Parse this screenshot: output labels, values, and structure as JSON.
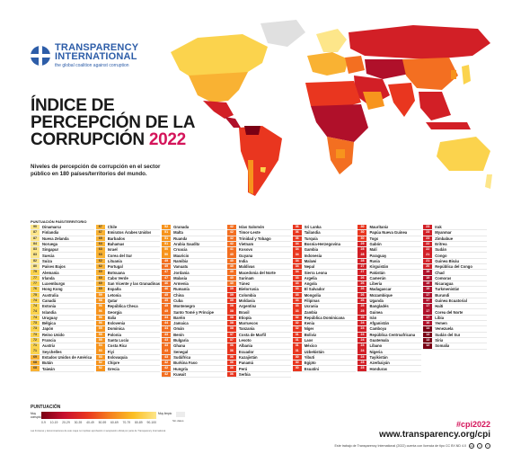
{
  "brand": {
    "name_line1": "TRANSPARENCY",
    "name_line2": "INTERNATIONAL",
    "tagline": "the global coalition against corruption"
  },
  "title": {
    "line1": "ÍNDICE DE",
    "line2": "PERCEPCIÓN DE LA",
    "line3": "CORRUPCIÓN",
    "year": "2022"
  },
  "subtitle": "Niveles de percepción de corrupción en el sector público en 180 países/territorios del mundo.",
  "table_header": "PUNTUACIÓN PAÍS/TERRITORIO",
  "colors": {
    "c90": "#fde68a",
    "c80": "#fbd34d",
    "c70": "#f9b233",
    "c60": "#f7941d",
    "c50": "#f36f21",
    "c40": "#e9361f",
    "c30": "#d21f26",
    "c20": "#b0102a",
    "c10": "#7a0014",
    "accent": "#d4145a",
    "brand": "#2d5da8"
  },
  "columns": [
    [
      {
        "s": "90",
        "n": "Dinamarca"
      },
      {
        "s": "87",
        "n": "Finlandia"
      },
      {
        "s": "87",
        "n": "Nueva Zelanda"
      },
      {
        "s": "84",
        "n": "Noruega"
      },
      {
        "s": "83",
        "n": "Singapur"
      },
      {
        "s": "83",
        "n": "Suecia"
      },
      {
        "s": "82",
        "n": "Suiza"
      },
      {
        "s": "80",
        "n": "Países Bajos"
      },
      {
        "s": "79",
        "n": "Alemania"
      },
      {
        "s": "77",
        "n": "Irlanda"
      },
      {
        "s": "77",
        "n": "Luxemburgo"
      },
      {
        "s": "76",
        "n": "Hong Kong"
      },
      {
        "s": "75",
        "n": "Australia"
      },
      {
        "s": "74",
        "n": "Canadá"
      },
      {
        "s": "74",
        "n": "Estonia"
      },
      {
        "s": "74",
        "n": "Islandia"
      },
      {
        "s": "74",
        "n": "Uruguay"
      },
      {
        "s": "73",
        "n": "Bélgica"
      },
      {
        "s": "73",
        "n": "Japón"
      },
      {
        "s": "73",
        "n": "Reino Unido"
      },
      {
        "s": "72",
        "n": "Francia"
      },
      {
        "s": "71",
        "n": "Austria"
      },
      {
        "s": "71",
        "n": "Seychelles"
      },
      {
        "s": "69",
        "n": "Estados Unidos de América"
      },
      {
        "s": "68",
        "n": "Bután"
      },
      {
        "s": "68",
        "n": "Taiwán"
      }
    ],
    [
      {
        "s": "67",
        "n": "Chile"
      },
      {
        "s": "67",
        "n": "Emiratos Árabes Unidos"
      },
      {
        "s": "65",
        "n": "Barbados"
      },
      {
        "s": "64",
        "n": "Bahamas"
      },
      {
        "s": "63",
        "n": "Israel"
      },
      {
        "s": "63",
        "n": "Corea del Sur"
      },
      {
        "s": "62",
        "n": "Lituania"
      },
      {
        "s": "62",
        "n": "Portugal"
      },
      {
        "s": "60",
        "n": "Botsuana"
      },
      {
        "s": "60",
        "n": "Cabo Verde"
      },
      {
        "s": "60",
        "n": "San Vicente y las Granadinas"
      },
      {
        "s": "60",
        "n": "España"
      },
      {
        "s": "59",
        "n": "Letonia"
      },
      {
        "s": "58",
        "n": "Qatar"
      },
      {
        "s": "56",
        "n": "República Checa"
      },
      {
        "s": "56",
        "n": "Georgia"
      },
      {
        "s": "56",
        "n": "Italia"
      },
      {
        "s": "56",
        "n": "Eslovenia"
      },
      {
        "s": "55",
        "n": "Dominica"
      },
      {
        "s": "55",
        "n": "Polonia"
      },
      {
        "s": "55",
        "n": "Santa Lucía"
      },
      {
        "s": "54",
        "n": "Costa Rica"
      },
      {
        "s": "53",
        "n": "Fiyi"
      },
      {
        "s": "53",
        "n": "Eslovaquia"
      },
      {
        "s": "52",
        "n": "Chipre"
      },
      {
        "s": "52",
        "n": "Grecia"
      }
    ],
    [
      {
        "s": "52",
        "n": "Granada"
      },
      {
        "s": "51",
        "n": "Malta"
      },
      {
        "s": "51",
        "n": "Ruanda"
      },
      {
        "s": "51",
        "n": "Arabia Saudita"
      },
      {
        "s": "50",
        "n": "Croacia"
      },
      {
        "s": "50",
        "n": "Mauricio"
      },
      {
        "s": "49",
        "n": "Namibia"
      },
      {
        "s": "49",
        "n": "Vanuatu"
      },
      {
        "s": "47",
        "n": "Jordania"
      },
      {
        "s": "47",
        "n": "Malasia"
      },
      {
        "s": "46",
        "n": "Armenia"
      },
      {
        "s": "46",
        "n": "Rumanía"
      },
      {
        "s": "45",
        "n": "China"
      },
      {
        "s": "45",
        "n": "Cuba"
      },
      {
        "s": "45",
        "n": "Montenegro"
      },
      {
        "s": "45",
        "n": "Santo Tomé y Príncipe"
      },
      {
        "s": "44",
        "n": "Baréin"
      },
      {
        "s": "44",
        "n": "Jamaica"
      },
      {
        "s": "44",
        "n": "Omán"
      },
      {
        "s": "43",
        "n": "Benín"
      },
      {
        "s": "43",
        "n": "Bulgaria"
      },
      {
        "s": "43",
        "n": "Ghana"
      },
      {
        "s": "43",
        "n": "Senegal"
      },
      {
        "s": "43",
        "n": "Sudáfrica"
      },
      {
        "s": "42",
        "n": "Burkina Faso"
      },
      {
        "s": "42",
        "n": "Hungría"
      },
      {
        "s": "42",
        "n": "Kuwait"
      }
    ],
    [
      {
        "s": "42",
        "n": "Islas Salomón"
      },
      {
        "s": "42",
        "n": "Timor-Leste"
      },
      {
        "s": "42",
        "n": "Trinidad y Tobago"
      },
      {
        "s": "42",
        "n": "Vietnam"
      },
      {
        "s": "41",
        "n": "Kosovo"
      },
      {
        "s": "40",
        "n": "Guyana"
      },
      {
        "s": "40",
        "n": "India"
      },
      {
        "s": "40",
        "n": "Maldivas"
      },
      {
        "s": "40",
        "n": "Macedonia del Norte"
      },
      {
        "s": "40",
        "n": "Surinam"
      },
      {
        "s": "40",
        "n": "Túnez"
      },
      {
        "s": "39",
        "n": "Bielorrusia"
      },
      {
        "s": "39",
        "n": "Colombia"
      },
      {
        "s": "39",
        "n": "Moldavia"
      },
      {
        "s": "38",
        "n": "Argentina"
      },
      {
        "s": "38",
        "n": "Brasil"
      },
      {
        "s": "38",
        "n": "Etiopía"
      },
      {
        "s": "38",
        "n": "Marruecos"
      },
      {
        "s": "38",
        "n": "Tanzania"
      },
      {
        "s": "37",
        "n": "Costa de Marfil"
      },
      {
        "s": "37",
        "n": "Lesoto"
      },
      {
        "s": "36",
        "n": "Albania"
      },
      {
        "s": "36",
        "n": "Ecuador"
      },
      {
        "s": "36",
        "n": "Kazajistán"
      },
      {
        "s": "36",
        "n": "Panamá"
      },
      {
        "s": "36",
        "n": "Perú"
      },
      {
        "s": "36",
        "n": "Serbia"
      }
    ],
    [
      {
        "s": "36",
        "n": "Sri Lanka"
      },
      {
        "s": "36",
        "n": "Tailandia"
      },
      {
        "s": "36",
        "n": "Turquía"
      },
      {
        "s": "34",
        "n": "Bosnia-Herzegovina"
      },
      {
        "s": "34",
        "n": "Gambia"
      },
      {
        "s": "34",
        "n": "Indonesia"
      },
      {
        "s": "34",
        "n": "Malawi"
      },
      {
        "s": "34",
        "n": "Nepal"
      },
      {
        "s": "34",
        "n": "Sierra Leona"
      },
      {
        "s": "33",
        "n": "Argelia"
      },
      {
        "s": "33",
        "n": "Angola"
      },
      {
        "s": "33",
        "n": "El Salvador"
      },
      {
        "s": "33",
        "n": "Mongolia"
      },
      {
        "s": "33",
        "n": "Filipinas"
      },
      {
        "s": "33",
        "n": "Ucrania"
      },
      {
        "s": "33",
        "n": "Zambia"
      },
      {
        "s": "32",
        "n": "República Dominicana"
      },
      {
        "s": "32",
        "n": "Kenia"
      },
      {
        "s": "32",
        "n": "Níger"
      },
      {
        "s": "31",
        "n": "Bolivia"
      },
      {
        "s": "31",
        "n": "Laos"
      },
      {
        "s": "31",
        "n": "México"
      },
      {
        "s": "31",
        "n": "Uzbekistán"
      },
      {
        "s": "30",
        "n": "Yibuti"
      },
      {
        "s": "30",
        "n": "Egipto"
      },
      {
        "s": "30",
        "n": "Esuatini"
      }
    ],
    [
      {
        "s": "30",
        "n": "Mauritania"
      },
      {
        "s": "30",
        "n": "Papúa Nueva Guinea"
      },
      {
        "s": "30",
        "n": "Togo"
      },
      {
        "s": "29",
        "n": "Gabón"
      },
      {
        "s": "28",
        "n": "Malí"
      },
      {
        "s": "28",
        "n": "Paraguay"
      },
      {
        "s": "28",
        "n": "Rusia"
      },
      {
        "s": "27",
        "n": "Kirguistán"
      },
      {
        "s": "27",
        "n": "Pakistán"
      },
      {
        "s": "26",
        "n": "Camerún"
      },
      {
        "s": "26",
        "n": "Liberia"
      },
      {
        "s": "26",
        "n": "Madagascar"
      },
      {
        "s": "26",
        "n": "Mozambique"
      },
      {
        "s": "26",
        "n": "Uganda"
      },
      {
        "s": "25",
        "n": "Bangladés"
      },
      {
        "s": "25",
        "n": "Guinea"
      },
      {
        "s": "25",
        "n": "Irán"
      },
      {
        "s": "24",
        "n": "Afganistán"
      },
      {
        "s": "24",
        "n": "Camboya"
      },
      {
        "s": "24",
        "n": "República Centroafricana"
      },
      {
        "s": "24",
        "n": "Guatemala"
      },
      {
        "s": "24",
        "n": "Líbano"
      },
      {
        "s": "24",
        "n": "Nigeria"
      },
      {
        "s": "24",
        "n": "Tayikistán"
      },
      {
        "s": "23",
        "n": "Azerbaiyán"
      },
      {
        "s": "23",
        "n": "Honduras"
      }
    ],
    [
      {
        "s": "23",
        "n": "Irak"
      },
      {
        "s": "23",
        "n": "Myanmar"
      },
      {
        "s": "23",
        "n": "Zimbabue"
      },
      {
        "s": "22",
        "n": "Eritrea"
      },
      {
        "s": "22",
        "n": "Sudán"
      },
      {
        "s": "21",
        "n": "Congo"
      },
      {
        "s": "21",
        "n": "Guinea Bisáu"
      },
      {
        "s": "20",
        "n": "República del Congo"
      },
      {
        "s": "19",
        "n": "Chad"
      },
      {
        "s": "19",
        "n": "Comoras"
      },
      {
        "s": "19",
        "n": "Nicaragua"
      },
      {
        "s": "19",
        "n": "Turkmenistán"
      },
      {
        "s": "17",
        "n": "Burundi"
      },
      {
        "s": "17",
        "n": "Guinea Ecuatorial"
      },
      {
        "s": "17",
        "n": "Haití"
      },
      {
        "s": "17",
        "n": "Corea del Norte"
      },
      {
        "s": "17",
        "n": "Libia"
      },
      {
        "s": "16",
        "n": "Yemen"
      },
      {
        "s": "14",
        "n": "Venezuela"
      },
      {
        "s": "13",
        "n": "Sudán del Sur"
      },
      {
        "s": "13",
        "n": "Siria"
      },
      {
        "s": "12",
        "n": "Somalia"
      }
    ]
  ],
  "legend": {
    "title": "PUNTUACIÓN",
    "left": "Muy corrupto",
    "right": "Muy limpio",
    "ticks": [
      "0-9",
      "10-19",
      "20-29",
      "30-39",
      "40-49",
      "50-59",
      "60-69",
      "70-79",
      "80-89",
      "90-100"
    ],
    "no_data": "Sin datos",
    "fine_print": "Las fronteras y denominaciones de este mapa no implican aprobación ni aceptación oficial por parte de Transparency International."
  },
  "footer": {
    "hashtag": "#cpi2022",
    "url": "www.transparency.org/cpi",
    "license": "Este trabajo de Transparency International (2022) cuenta con licencia de tipo CC BY-ND 4.0"
  }
}
